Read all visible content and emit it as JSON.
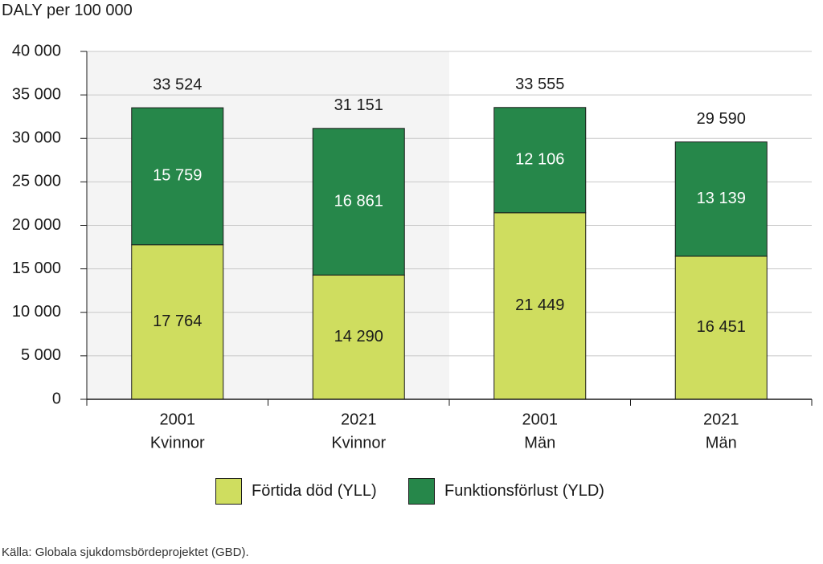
{
  "chart_data": {
    "type": "bar",
    "stacked": true,
    "ylabel": "DALY per 100 000",
    "ylim": [
      0,
      40000
    ],
    "yticks": [
      0,
      5000,
      10000,
      15000,
      20000,
      25000,
      30000,
      35000,
      40000
    ],
    "ytick_labels": [
      "0",
      "5 000",
      "10 000",
      "15 000",
      "20 000",
      "25 000",
      "30 000",
      "35 000",
      "40 000"
    ],
    "grid": true,
    "legend_position": "bottom",
    "categories": [
      {
        "line1": "2001",
        "line2": "Kvinnor"
      },
      {
        "line1": "2021",
        "line2": "Kvinnor"
      },
      {
        "line1": "2001",
        "line2": "Män"
      },
      {
        "line1": "2021",
        "line2": "Män"
      }
    ],
    "series": [
      {
        "name": "Förtida död (YLL)",
        "color": "#cfdd5f",
        "values": [
          17764,
          14290,
          21449,
          16451
        ],
        "labels": [
          "17 764",
          "14 290",
          "21 449",
          "16 451"
        ]
      },
      {
        "name": "Funktionsförlust (YLD)",
        "color": "#26874a",
        "values": [
          15759,
          16861,
          12106,
          13139
        ],
        "labels": [
          "15 759",
          "16 861",
          "12 106",
          "13 139"
        ]
      }
    ],
    "totals": [
      33524,
      31151,
      33555,
      29590
    ],
    "total_labels": [
      "33 524",
      "31 151",
      "33 555",
      "29 590"
    ],
    "highlight_categories": [
      0,
      1
    ],
    "highlight_color": "#f4f4f4"
  },
  "source": "Källa: Globala sjukdomsbördeprojektet (GBD)."
}
